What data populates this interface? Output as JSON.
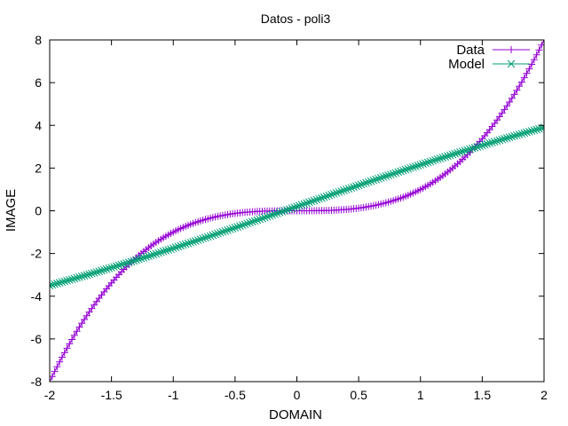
{
  "chart_data": {
    "type": "line",
    "title": "Datos - poli3",
    "xlabel": "DOMAIN",
    "ylabel": "IMAGE",
    "xlim": [
      -2,
      2
    ],
    "ylim": [
      -8,
      8
    ],
    "x_ticks": [
      -2,
      -1.5,
      -1,
      -0.5,
      0,
      0.5,
      1,
      1.5,
      2
    ],
    "y_ticks": [
      -8,
      -6,
      -4,
      -2,
      0,
      2,
      4,
      6,
      8
    ],
    "x_tick_labels": [
      "-2",
      "-1.5",
      "-1",
      "-0.5",
      "0",
      "0.5",
      "1",
      "1.5",
      "2"
    ],
    "y_tick_labels": [
      "-8",
      "-6",
      "-4",
      "-2",
      "0",
      "2",
      "4",
      "6",
      "8"
    ],
    "grid": false,
    "legend_position": "top-right",
    "series": [
      {
        "name": "Data",
        "color": "#9400d3",
        "marker": "plus",
        "function": "y = x^3",
        "x_range": [
          -2,
          2
        ],
        "points": 201
      },
      {
        "name": "Model",
        "color": "#009e73",
        "marker": "cross",
        "function": "y = 1.6x + 0.5*sin(0.785x) + 0.2",
        "x_range": [
          -2,
          2
        ],
        "points": 201
      }
    ]
  }
}
